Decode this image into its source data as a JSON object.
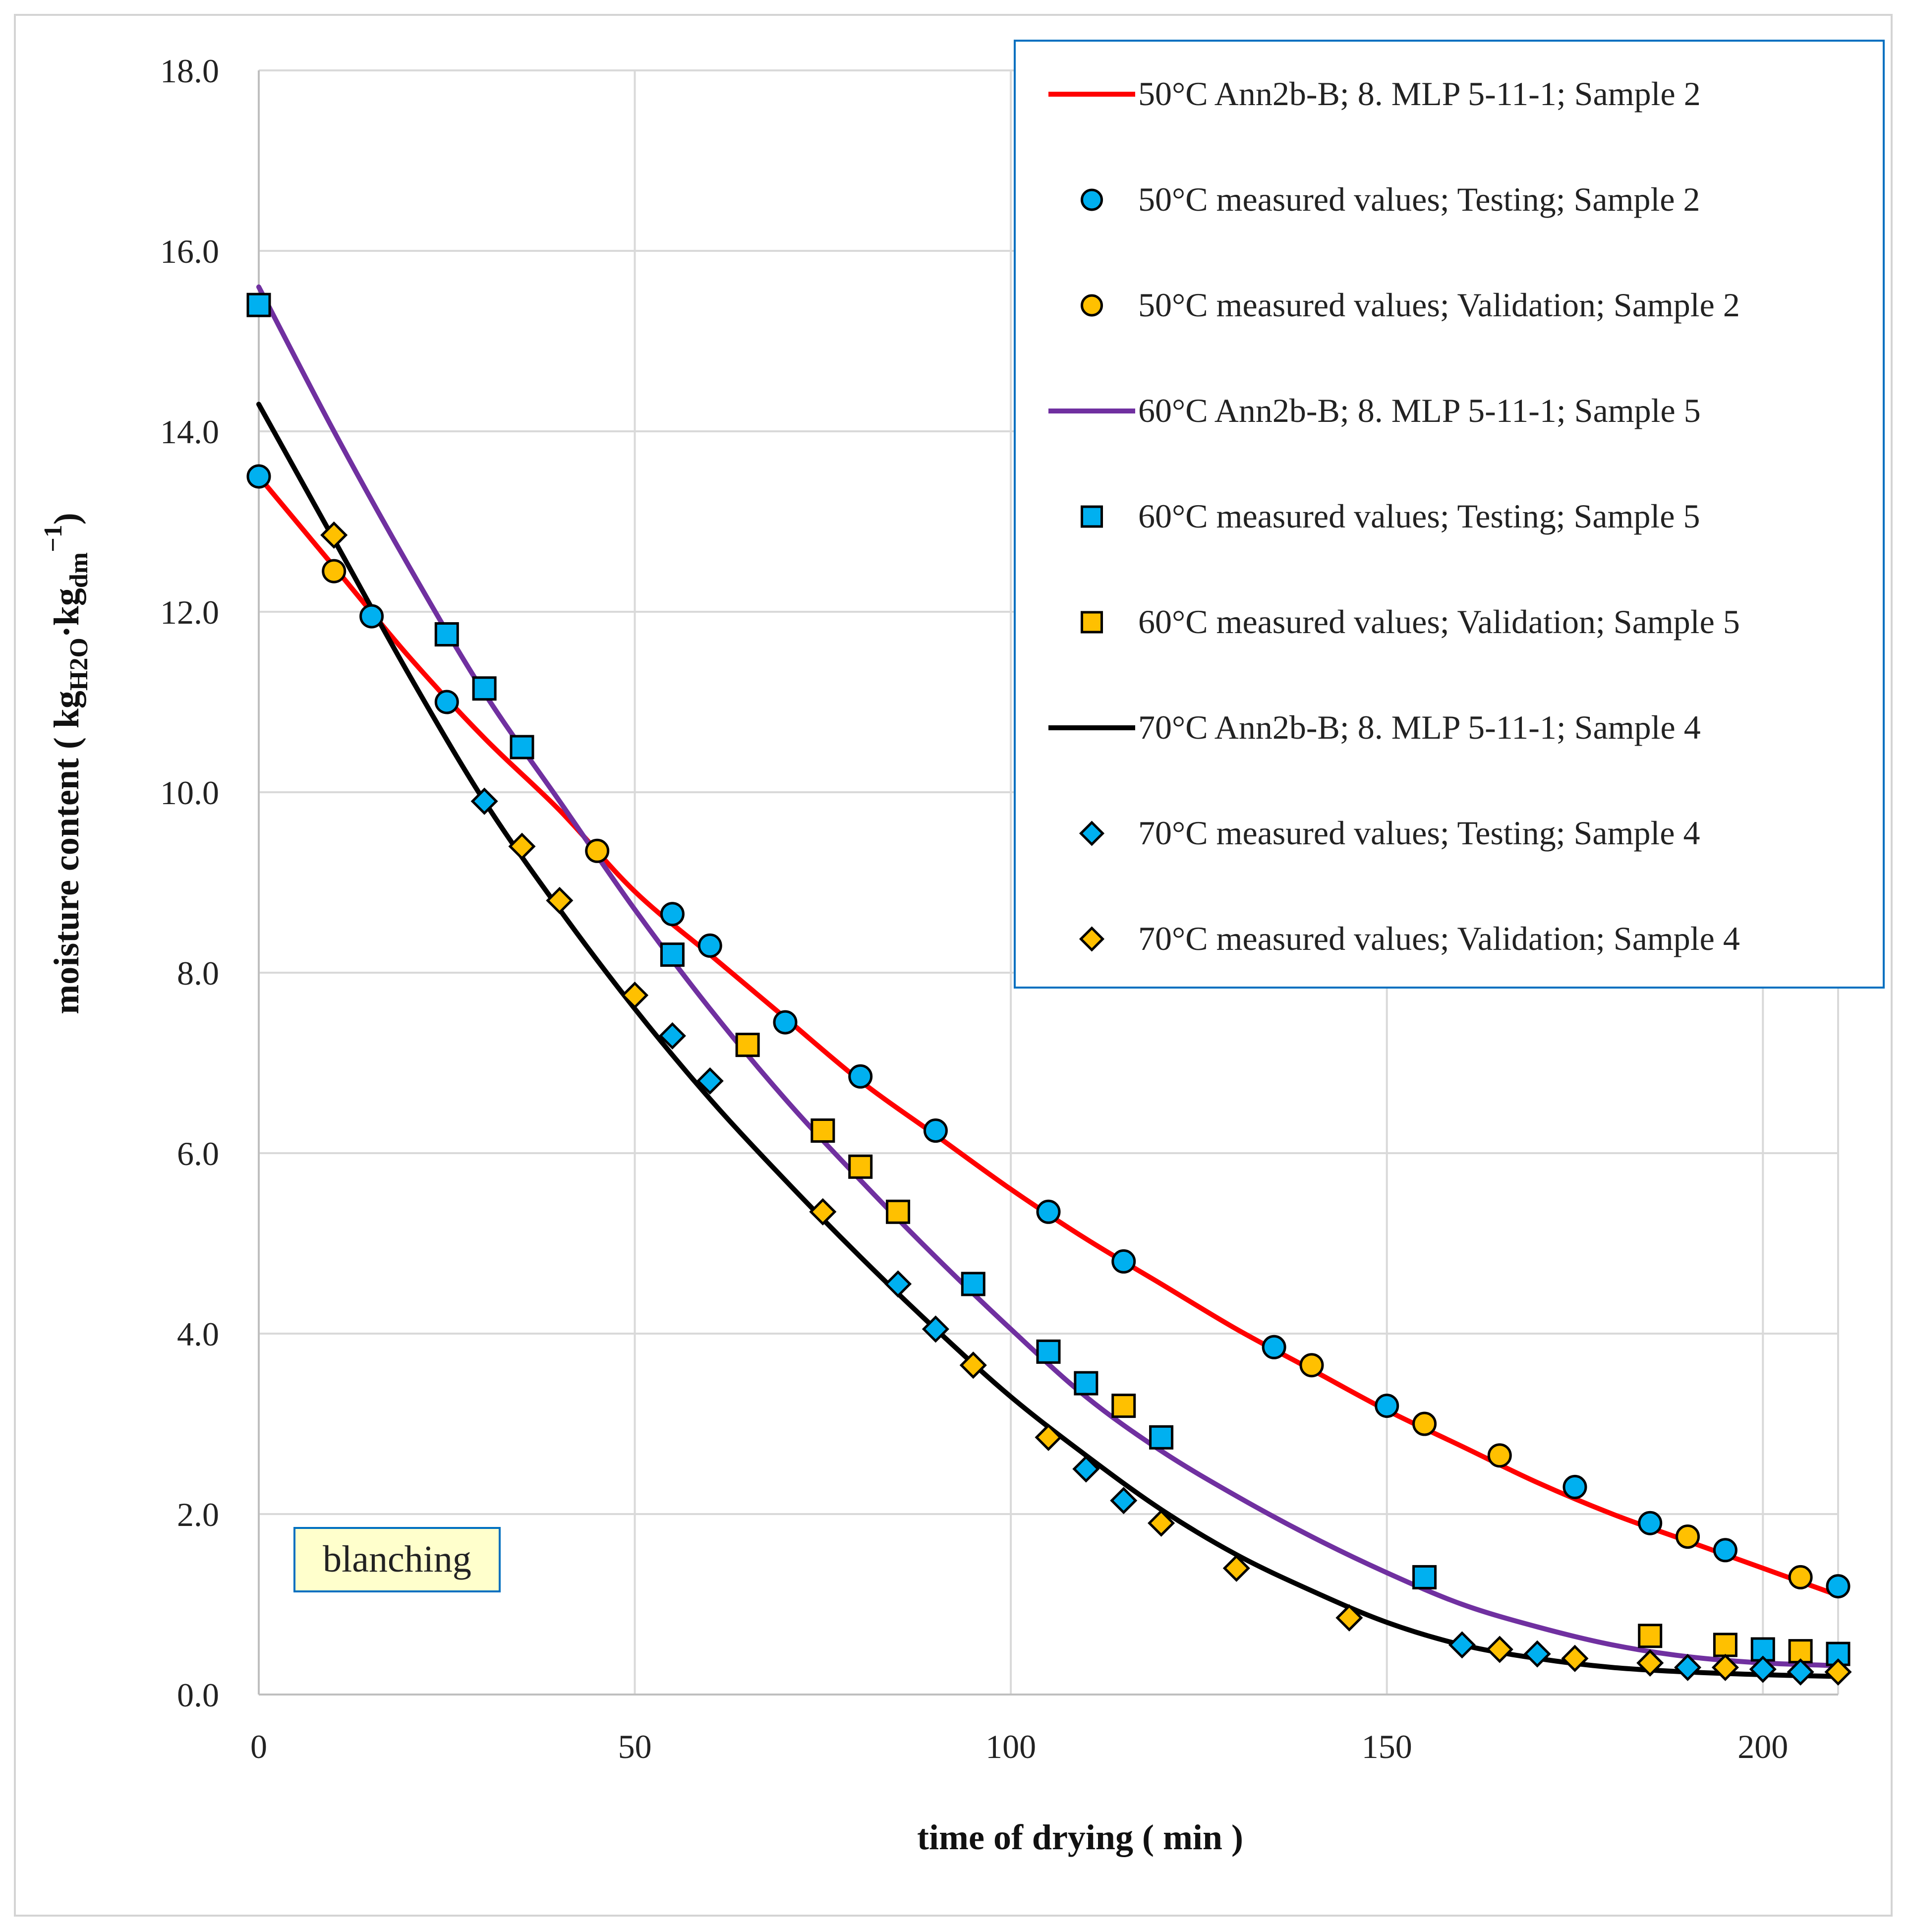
{
  "chart_data": {
    "type": "line",
    "title": "",
    "xlabel": "time of drying  ( min )",
    "ylabel_parts": {
      "prefix": "moisture content ( kg",
      "sub1": "H2O",
      "mid": "·kg",
      "sub2": "dm",
      "sup": "−1",
      "suffix": ")"
    },
    "xlim": [
      0,
      210
    ],
    "ylim": [
      0,
      18
    ],
    "xticks": [
      0,
      50,
      100,
      150,
      200
    ],
    "xtick_labels": [
      "0",
      "50",
      "100",
      "150",
      "200"
    ],
    "yticks": [
      0,
      2,
      4,
      6,
      8,
      10,
      12,
      14,
      16,
      18
    ],
    "ytick_labels": [
      "0.0",
      "2.0",
      "4.0",
      "6.0",
      "8.0",
      "10.0",
      "12.0",
      "14.0",
      "16.0",
      "18.0"
    ],
    "grid": true,
    "legend_position": "top-right",
    "annotation": "blanching",
    "series": [
      {
        "name": "50°C  Ann2b-B; 8. MLP 5-11-1; Sample 2",
        "kind": "line",
        "color": "#ff0000",
        "x": [
          0,
          10,
          20,
          30,
          40,
          50,
          60,
          70,
          80,
          90,
          100,
          110,
          120,
          130,
          140,
          150,
          160,
          170,
          180,
          190,
          200,
          210
        ],
        "y": [
          13.5,
          12.5,
          11.5,
          10.6,
          9.8,
          8.9,
          8.2,
          7.5,
          6.8,
          6.2,
          5.6,
          5.05,
          4.55,
          4.05,
          3.6,
          3.15,
          2.75,
          2.35,
          2.0,
          1.7,
          1.4,
          1.1
        ]
      },
      {
        "name": "50°C measured values; Testing; Sample 2",
        "kind": "marker",
        "marker": "circle",
        "color": "#00b0f0",
        "x": [
          0,
          15,
          25,
          55,
          60,
          70,
          80,
          90,
          105,
          115,
          135,
          150,
          175,
          185,
          195,
          210
        ],
        "y": [
          13.5,
          11.95,
          11.0,
          8.65,
          8.3,
          7.45,
          6.85,
          6.25,
          5.35,
          4.8,
          3.85,
          3.2,
          2.3,
          1.9,
          1.6,
          1.2
        ]
      },
      {
        "name": "50°C measured values; Validation; Sample 2",
        "kind": "marker",
        "marker": "circle",
        "color": "#ffc000",
        "x": [
          10,
          45,
          140,
          155,
          165,
          190,
          205
        ],
        "y": [
          12.45,
          9.35,
          3.65,
          3.0,
          2.65,
          1.75,
          1.3
        ]
      },
      {
        "name": "60°C  Ann2b-B; 8. MLP 5-11-1; Sample 5",
        "kind": "line",
        "color": "#7030a0",
        "x": [
          0,
          10,
          20,
          30,
          40,
          50,
          60,
          70,
          80,
          90,
          100,
          110,
          120,
          130,
          140,
          150,
          160,
          170,
          180,
          190,
          200,
          210
        ],
        "y": [
          15.6,
          14.0,
          12.5,
          11.1,
          9.9,
          8.7,
          7.6,
          6.6,
          5.7,
          4.85,
          4.05,
          3.3,
          2.7,
          2.2,
          1.75,
          1.35,
          1.0,
          0.75,
          0.55,
          0.42,
          0.35,
          0.32
        ]
      },
      {
        "name": "60°C measured values; Testing; Sample 5",
        "kind": "marker",
        "marker": "square",
        "color": "#00b0f0",
        "x": [
          0,
          25,
          30,
          35,
          55,
          95,
          105,
          110,
          120,
          155,
          200,
          210
        ],
        "y": [
          15.4,
          11.75,
          11.15,
          10.5,
          8.2,
          4.55,
          3.8,
          3.45,
          2.85,
          1.3,
          0.5,
          0.45
        ]
      },
      {
        "name": "60°C measured values; Validation; Sample 5",
        "kind": "marker",
        "marker": "square",
        "color": "#ffc000",
        "x": [
          65,
          75,
          80,
          85,
          115,
          185,
          195,
          205
        ],
        "y": [
          7.2,
          6.25,
          5.85,
          5.35,
          3.2,
          0.65,
          0.55,
          0.48
        ]
      },
      {
        "name": "70°C  Ann2b-B; 8. MLP 5-11-1; Sample 4",
        "kind": "line",
        "color": "#000000",
        "x": [
          0,
          10,
          20,
          30,
          40,
          50,
          60,
          70,
          80,
          90,
          100,
          110,
          120,
          130,
          140,
          150,
          160,
          170,
          180,
          190,
          200,
          210
        ],
        "y": [
          14.3,
          12.8,
          11.3,
          9.9,
          8.7,
          7.6,
          6.6,
          5.7,
          4.85,
          4.05,
          3.3,
          2.65,
          2.05,
          1.55,
          1.15,
          0.8,
          0.55,
          0.4,
          0.3,
          0.25,
          0.22,
          0.2
        ]
      },
      {
        "name": "70°C measured values; Testing; Sample 4",
        "kind": "marker",
        "marker": "diamond",
        "color": "#00b0f0",
        "x": [
          30,
          55,
          60,
          85,
          90,
          110,
          115,
          160,
          170,
          190,
          200,
          205
        ],
        "y": [
          9.9,
          7.3,
          6.8,
          4.55,
          4.05,
          2.5,
          2.15,
          0.55,
          0.45,
          0.3,
          0.28,
          0.25
        ]
      },
      {
        "name": "70°C measured values; Validation; Sample 4",
        "kind": "marker",
        "marker": "diamond",
        "color": "#ffc000",
        "x": [
          10,
          35,
          40,
          50,
          75,
          95,
          105,
          120,
          130,
          145,
          165,
          175,
          185,
          195,
          210
        ],
        "y": [
          12.85,
          9.4,
          8.8,
          7.75,
          5.35,
          3.65,
          2.85,
          1.9,
          1.4,
          0.85,
          0.5,
          0.4,
          0.35,
          0.3,
          0.25
        ]
      }
    ]
  }
}
